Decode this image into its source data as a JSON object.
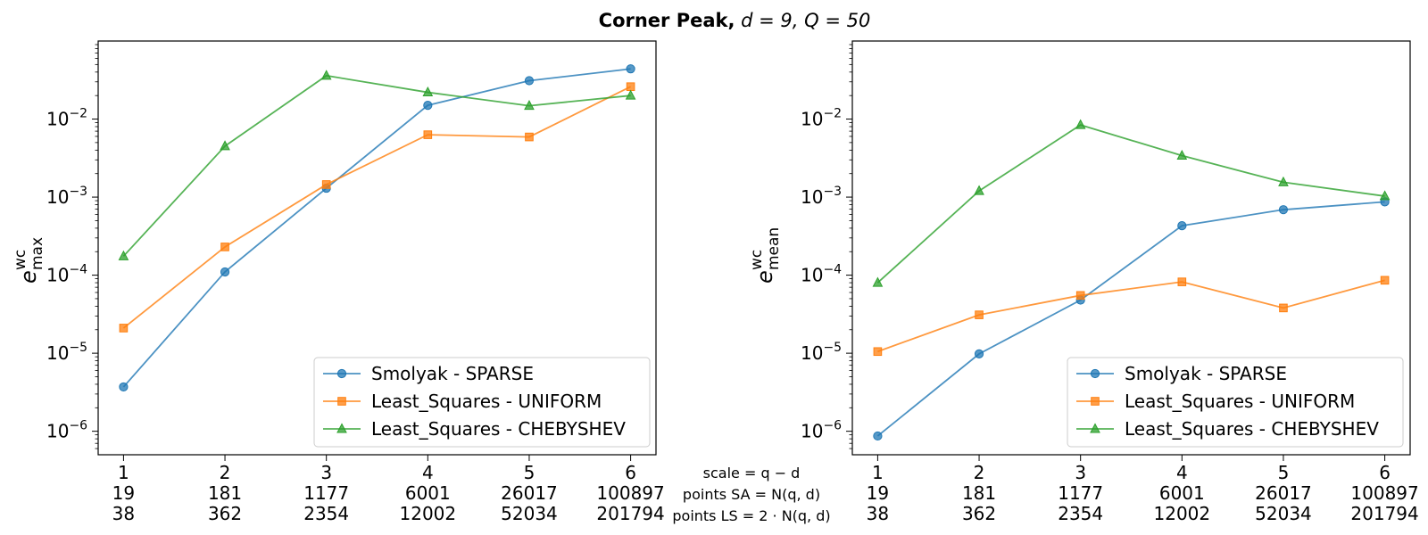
{
  "figure": {
    "title_bold": "Corner Peak,",
    "title_math": "d = 9, Q = 50"
  },
  "x_info_labels": [
    "scale = q − d",
    "points SA = N(q, d)",
    "points LS = 2 · N(q, d)"
  ],
  "colors": {
    "sparse": "#1f77b4",
    "uniform": "#ff7f0e",
    "chebyshev": "#2ca02c"
  },
  "chart_data": [
    {
      "type": "line",
      "y_scale": "log",
      "ylabel_base": "e",
      "ylabel_sup": "wc",
      "ylabel_sub": "max",
      "ylim": [
        5e-07,
        0.1
      ],
      "yticks": [
        {
          "value": 1e-06,
          "mantissa": "10",
          "exp": "−6"
        },
        {
          "value": 1e-05,
          "mantissa": "10",
          "exp": "−5"
        },
        {
          "value": 0.0001,
          "mantissa": "10",
          "exp": "−4"
        },
        {
          "value": 0.001,
          "mantissa": "10",
          "exp": "−3"
        },
        {
          "value": 0.01,
          "mantissa": "10",
          "exp": "−2"
        }
      ],
      "x": [
        1,
        2,
        3,
        4,
        5,
        6
      ],
      "x_tick_labels": [
        [
          "1",
          "19",
          "38"
        ],
        [
          "2",
          "181",
          "362"
        ],
        [
          "3",
          "1177",
          "2354"
        ],
        [
          "4",
          "6001",
          "12002"
        ],
        [
          "5",
          "26017",
          "52034"
        ],
        [
          "6",
          "100897",
          "201794"
        ]
      ],
      "legend_position": "lower right",
      "series": [
        {
          "name": "Smolyak - SPARSE",
          "color_key": "sparse",
          "marker": "circle",
          "values": [
            3.7e-06,
            0.00011,
            0.0013,
            0.015,
            0.031,
            0.044
          ]
        },
        {
          "name": "Least_Squares - UNIFORM",
          "color_key": "uniform",
          "marker": "square",
          "values": [
            2.1e-05,
            0.00023,
            0.00145,
            0.0063,
            0.0059,
            0.026
          ]
        },
        {
          "name": "Least_Squares - CHEBYSHEV",
          "color_key": "chebyshev",
          "marker": "triangle",
          "values": [
            0.000175,
            0.0045,
            0.036,
            0.022,
            0.0148,
            0.02
          ]
        }
      ]
    },
    {
      "type": "line",
      "y_scale": "log",
      "ylabel_base": "e",
      "ylabel_sup": "wc",
      "ylabel_sub": "mean",
      "ylim": [
        5e-07,
        0.1
      ],
      "yticks": [
        {
          "value": 1e-06,
          "mantissa": "10",
          "exp": "−6"
        },
        {
          "value": 1e-05,
          "mantissa": "10",
          "exp": "−5"
        },
        {
          "value": 0.0001,
          "mantissa": "10",
          "exp": "−4"
        },
        {
          "value": 0.001,
          "mantissa": "10",
          "exp": "−3"
        },
        {
          "value": 0.01,
          "mantissa": "10",
          "exp": "−2"
        }
      ],
      "x": [
        1,
        2,
        3,
        4,
        5,
        6
      ],
      "x_tick_labels": [
        [
          "1",
          "19",
          "38"
        ],
        [
          "2",
          "181",
          "362"
        ],
        [
          "3",
          "1177",
          "2354"
        ],
        [
          "4",
          "6001",
          "12002"
        ],
        [
          "5",
          "26017",
          "52034"
        ],
        [
          "6",
          "100897",
          "201794"
        ]
      ],
      "legend_position": "lower right",
      "series": [
        {
          "name": "Smolyak - SPARSE",
          "color_key": "sparse",
          "marker": "circle",
          "values": [
            8.7e-07,
            9.8e-06,
            4.8e-05,
            0.00043,
            0.00069,
            0.00087
          ]
        },
        {
          "name": "Least_Squares - UNIFORM",
          "color_key": "uniform",
          "marker": "square",
          "values": [
            1.05e-05,
            3.1e-05,
            5.5e-05,
            8.2e-05,
            3.8e-05,
            8.6e-05
          ]
        },
        {
          "name": "Least_Squares - CHEBYSHEV",
          "color_key": "chebyshev",
          "marker": "triangle",
          "values": [
            8e-05,
            0.0012,
            0.0084,
            0.0034,
            0.00155,
            0.00103
          ]
        }
      ]
    }
  ]
}
